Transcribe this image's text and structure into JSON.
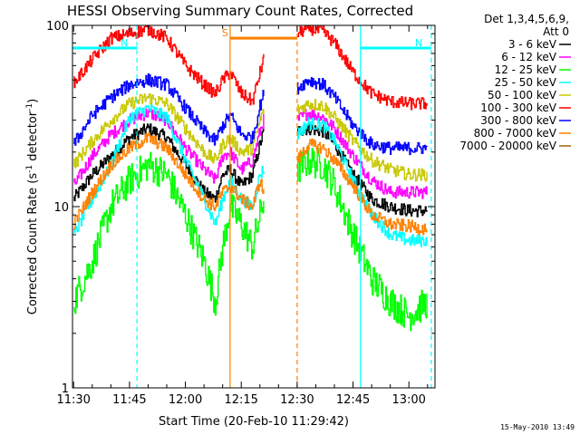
{
  "chart_data": {
    "type": "line",
    "title": "HESSI Observing Summary Count Rates, Corrected",
    "xlabel": "Start Time (20-Feb-10 11:29:42)",
    "ylabel": "Corrected Count Rate (s⁻¹ detector⁻¹)",
    "ylabel_main": "Corrected Count Rate (s",
    "ylabel_sup1": "-1",
    "ylabel_mid": " detector",
    "ylabel_sup2": "-1",
    "ylabel_end": ")",
    "y_scale": "log",
    "ylim": [
      1,
      100
    ],
    "xlim": [
      "11:29:42",
      "13:07:00"
    ],
    "x_tick_labels": [
      "11:30",
      "11:45",
      "12:00",
      "12:15",
      "12:30",
      "12:45",
      "13:00"
    ],
    "y_tick_labels": [
      "1",
      "10",
      "100"
    ],
    "legend_header": [
      "Det 1,3,4,5,6,9,",
      "Att 0"
    ],
    "footer_date": "15-May-2010 13:49",
    "data_gaps": [
      [
        "12:21:00",
        "12:30:00"
      ]
    ],
    "annotations": [
      {
        "label": "N",
        "kind": "night",
        "color": "#00ffff",
        "start": "11:29:42",
        "end": "11:47:00",
        "level": 75
      },
      {
        "label": "N",
        "kind": "night",
        "color": "#00ffff",
        "start": "12:47:00",
        "end": "13:06:00",
        "level": 75
      },
      {
        "label": "S",
        "kind": "SAA",
        "color": "#ff8000",
        "start": "12:12:00",
        "end": "12:30:00",
        "level": 85
      }
    ],
    "vertical_markers": [
      {
        "time": "11:47:00",
        "color": "#00ffff",
        "style": "dashed"
      },
      {
        "time": "12:12:00",
        "color": "#ff8000",
        "style": "solid"
      },
      {
        "time": "12:30:00",
        "color": "#ff8000",
        "style": "dashed"
      },
      {
        "time": "12:47:00",
        "color": "#00ffff",
        "style": "solid"
      },
      {
        "time": "13:06:00",
        "color": "#00ffff",
        "style": "dashed"
      }
    ],
    "series": [
      {
        "name": "3 - 6 keV",
        "color": "#000000",
        "points": [
          [
            "11:30",
            11
          ],
          [
            "11:35",
            15
          ],
          [
            "11:40",
            19
          ],
          [
            "11:45",
            24
          ],
          [
            "11:50",
            27
          ],
          [
            "11:55",
            24
          ],
          [
            "12:00",
            17
          ],
          [
            "12:05",
            12
          ],
          [
            "12:08",
            11
          ],
          [
            "12:10",
            15
          ],
          [
            "12:12",
            16
          ],
          [
            "12:15",
            13
          ],
          [
            "12:18",
            15
          ],
          [
            "12:20",
            22
          ],
          [
            "12:21",
            26
          ],
          [
            "12:30",
            26
          ],
          [
            "12:33",
            27
          ],
          [
            "12:37",
            26
          ],
          [
            "12:40",
            22
          ],
          [
            "12:45",
            15
          ],
          [
            "12:50",
            11
          ],
          [
            "12:55",
            10
          ],
          [
            "13:00",
            9.5
          ],
          [
            "13:05",
            9.5
          ]
        ]
      },
      {
        "name": "6 - 12 keV",
        "color": "#ff00ff",
        "points": [
          [
            "11:30",
            13
          ],
          [
            "11:35",
            19
          ],
          [
            "11:40",
            25
          ],
          [
            "11:45",
            30
          ],
          [
            "11:50",
            33
          ],
          [
            "11:55",
            30
          ],
          [
            "12:00",
            21
          ],
          [
            "12:05",
            16
          ],
          [
            "12:08",
            14
          ],
          [
            "12:10",
            19
          ],
          [
            "12:12",
            20
          ],
          [
            "12:15",
            16
          ],
          [
            "12:18",
            18
          ],
          [
            "12:20",
            26
          ],
          [
            "12:21",
            30
          ],
          [
            "12:30",
            30
          ],
          [
            "12:33",
            33
          ],
          [
            "12:37",
            31
          ],
          [
            "12:40",
            27
          ],
          [
            "12:45",
            19
          ],
          [
            "12:50",
            14
          ],
          [
            "12:55",
            12
          ],
          [
            "13:00",
            12
          ],
          [
            "13:05",
            12
          ]
        ]
      },
      {
        "name": "12 - 25 keV",
        "color": "#00ff00",
        "points": [
          [
            "11:30",
            3
          ],
          [
            "11:35",
            5
          ],
          [
            "11:40",
            10
          ],
          [
            "11:45",
            14
          ],
          [
            "11:50",
            17
          ],
          [
            "11:55",
            15
          ],
          [
            "12:00",
            9
          ],
          [
            "12:05",
            5
          ],
          [
            "12:08",
            3
          ],
          [
            "12:10",
            6
          ],
          [
            "12:12",
            10
          ],
          [
            "12:15",
            8
          ],
          [
            "12:18",
            6
          ],
          [
            "12:20",
            9
          ],
          [
            "12:21",
            11
          ],
          [
            "12:30",
            16
          ],
          [
            "12:33",
            18
          ],
          [
            "12:37",
            17
          ],
          [
            "12:40",
            13
          ],
          [
            "12:45",
            7
          ],
          [
            "12:50",
            4
          ],
          [
            "12:55",
            3
          ],
          [
            "13:00",
            2.5
          ],
          [
            "13:05",
            3
          ]
        ]
      },
      {
        "name": "25 - 50 keV",
        "color": "#00ffff",
        "points": [
          [
            "11:30",
            7
          ],
          [
            "11:35",
            11
          ],
          [
            "11:40",
            17
          ],
          [
            "11:45",
            31
          ],
          [
            "11:50",
            35
          ],
          [
            "11:55",
            31
          ],
          [
            "12:00",
            18
          ],
          [
            "12:05",
            11
          ],
          [
            "12:08",
            8
          ],
          [
            "12:10",
            11
          ],
          [
            "12:12",
            14
          ],
          [
            "12:15",
            11
          ],
          [
            "12:18",
            10
          ],
          [
            "12:20",
            15
          ],
          [
            "12:21",
            16
          ],
          [
            "12:30",
            25
          ],
          [
            "12:33",
            29
          ],
          [
            "12:37",
            28
          ],
          [
            "12:40",
            23
          ],
          [
            "12:45",
            14
          ],
          [
            "12:50",
            9
          ],
          [
            "12:55",
            7
          ],
          [
            "13:00",
            6.5
          ],
          [
            "13:05",
            6.5
          ]
        ]
      },
      {
        "name": "50 - 100 keV",
        "color": "#c8c800",
        "points": [
          [
            "11:30",
            17
          ],
          [
            "11:35",
            23
          ],
          [
            "11:40",
            30
          ],
          [
            "11:45",
            37
          ],
          [
            "11:50",
            40
          ],
          [
            "11:55",
            37
          ],
          [
            "12:00",
            27
          ],
          [
            "12:05",
            20
          ],
          [
            "12:08",
            18
          ],
          [
            "12:10",
            22
          ],
          [
            "12:12",
            24
          ],
          [
            "12:15",
            20
          ],
          [
            "12:18",
            21
          ],
          [
            "12:20",
            30
          ],
          [
            "12:21",
            34
          ],
          [
            "12:30",
            34
          ],
          [
            "12:33",
            37
          ],
          [
            "12:37",
            36
          ],
          [
            "12:40",
            31
          ],
          [
            "12:45",
            23
          ],
          [
            "12:50",
            18
          ],
          [
            "12:55",
            16
          ],
          [
            "13:00",
            15
          ],
          [
            "13:05",
            15
          ]
        ]
      },
      {
        "name": "100 - 300 keV",
        "color": "#ff0000",
        "points": [
          [
            "11:30",
            48
          ],
          [
            "11:35",
            65
          ],
          [
            "11:40",
            85
          ],
          [
            "11:45",
            90
          ],
          [
            "11:50",
            95
          ],
          [
            "11:55",
            85
          ],
          [
            "12:00",
            60
          ],
          [
            "12:05",
            47
          ],
          [
            "12:08",
            42
          ],
          [
            "12:10",
            50
          ],
          [
            "12:12",
            55
          ],
          [
            "12:15",
            42
          ],
          [
            "12:18",
            38
          ],
          [
            "12:20",
            55
          ],
          [
            "12:21",
            65
          ],
          [
            "12:30",
            90
          ],
          [
            "12:33",
            97
          ],
          [
            "12:37",
            92
          ],
          [
            "12:40",
            80
          ],
          [
            "12:45",
            55
          ],
          [
            "12:50",
            42
          ],
          [
            "12:55",
            38
          ],
          [
            "13:00",
            37
          ],
          [
            "13:05",
            37
          ]
        ]
      },
      {
        "name": "300 - 800 keV",
        "color": "#0000ff",
        "points": [
          [
            "11:30",
            22
          ],
          [
            "11:35",
            32
          ],
          [
            "11:40",
            40
          ],
          [
            "11:45",
            47
          ],
          [
            "11:50",
            50
          ],
          [
            "11:55",
            47
          ],
          [
            "12:00",
            35
          ],
          [
            "12:05",
            26
          ],
          [
            "12:08",
            23
          ],
          [
            "12:10",
            28
          ],
          [
            "12:12",
            32
          ],
          [
            "12:15",
            25
          ],
          [
            "12:18",
            24
          ],
          [
            "12:20",
            36
          ],
          [
            "12:21",
            42
          ],
          [
            "12:30",
            45
          ],
          [
            "12:33",
            50
          ],
          [
            "12:37",
            47
          ],
          [
            "12:40",
            40
          ],
          [
            "12:45",
            28
          ],
          [
            "12:50",
            22
          ],
          [
            "12:55",
            21
          ],
          [
            "13:00",
            21
          ],
          [
            "13:05",
            21
          ]
        ]
      },
      {
        "name": "800 - 7000 keV",
        "color": "#ff8000",
        "points": [
          [
            "11:30",
            8
          ],
          [
            "11:35",
            12
          ],
          [
            "11:40",
            17
          ],
          [
            "11:45",
            21
          ],
          [
            "11:50",
            24
          ],
          [
            "11:55",
            21
          ],
          [
            "12:00",
            15
          ],
          [
            "12:05",
            11
          ],
          [
            "12:08",
            10
          ],
          [
            "12:10",
            12
          ],
          [
            "12:12",
            13
          ],
          [
            "12:15",
            11
          ],
          [
            "12:18",
            10
          ],
          [
            "12:20",
            14
          ],
          [
            "12:21",
            12
          ],
          [
            "12:30",
            18
          ],
          [
            "12:33",
            22
          ],
          [
            "12:37",
            21
          ],
          [
            "12:40",
            18
          ],
          [
            "12:45",
            13
          ],
          [
            "12:50",
            9
          ],
          [
            "12:55",
            8
          ],
          [
            "13:00",
            7.8
          ],
          [
            "13:05",
            7.5
          ]
        ]
      },
      {
        "name": "7000 - 20000 keV",
        "color": "#996600",
        "points": []
      }
    ]
  }
}
